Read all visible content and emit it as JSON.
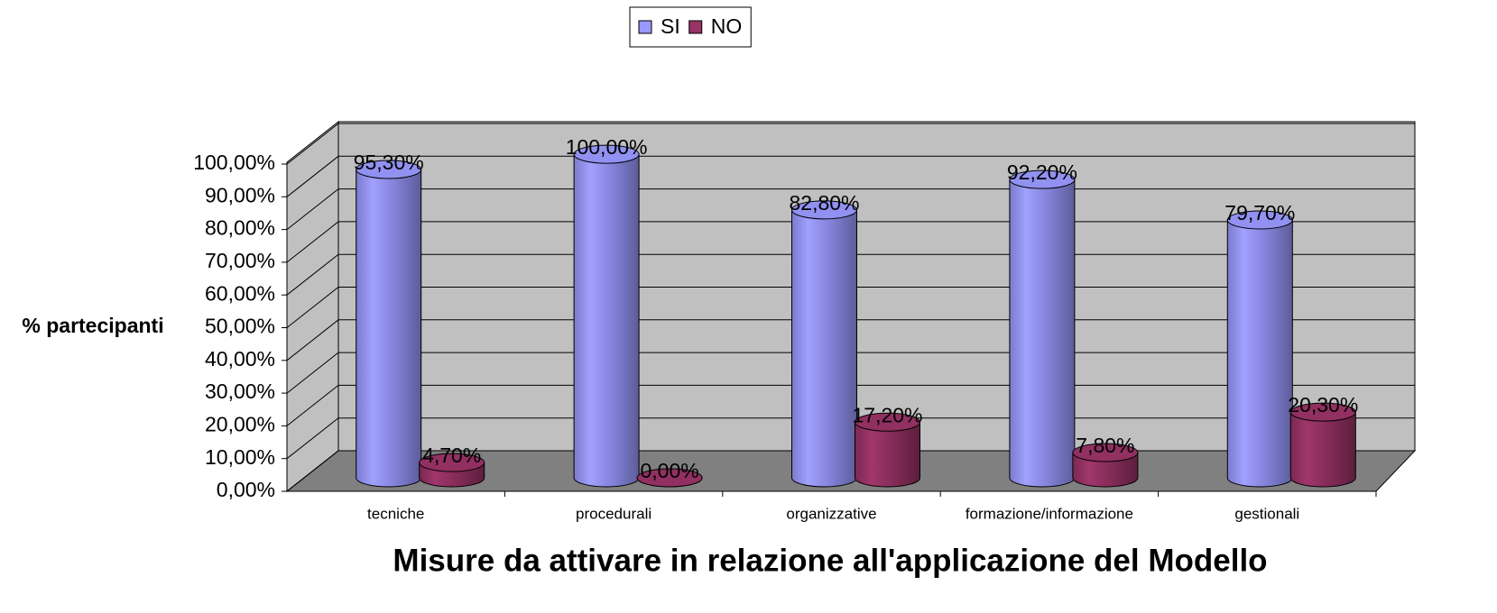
{
  "chart_data": {
    "type": "bar",
    "title": "Misure da attivare in relazione all'applicazione del Modello",
    "y_label": "% partecipanti",
    "categories": [
      "tecniche",
      "procedurali",
      "organizzative",
      "formazione/informazione",
      "gestionali"
    ],
    "series": [
      {
        "name": "SI",
        "color": "#9999ff",
        "values": [
          95.3,
          100,
          82.8,
          92.2,
          79.7
        ],
        "value_labels": [
          "95,30%",
          "100,00%",
          "82,80%",
          "92,20%",
          "79,70%"
        ]
      },
      {
        "name": "NO",
        "color": "#993366",
        "values": [
          4.7,
          0,
          17.2,
          7.8,
          20.3
        ],
        "value_labels": [
          "4,70%",
          "0,00%",
          "17,20%",
          "7,80%",
          "20,30%"
        ]
      }
    ],
    "ylim": [
      0,
      100
    ],
    "yticks": [
      {
        "value": 0,
        "label": "0,00%"
      },
      {
        "value": 10,
        "label": "10,00%"
      },
      {
        "value": 20,
        "label": "20,00%"
      },
      {
        "value": 30,
        "label": "30,00%"
      },
      {
        "value": 40,
        "label": "40,00%"
      },
      {
        "value": 50,
        "label": "50,00%"
      },
      {
        "value": 60,
        "label": "60,00%"
      },
      {
        "value": 70,
        "label": "70,00%"
      },
      {
        "value": 80,
        "label": "80,00%"
      },
      {
        "value": 90,
        "label": "90,00%"
      },
      {
        "value": 100,
        "label": "100,00%"
      }
    ],
    "grid": true,
    "legend": "top"
  }
}
